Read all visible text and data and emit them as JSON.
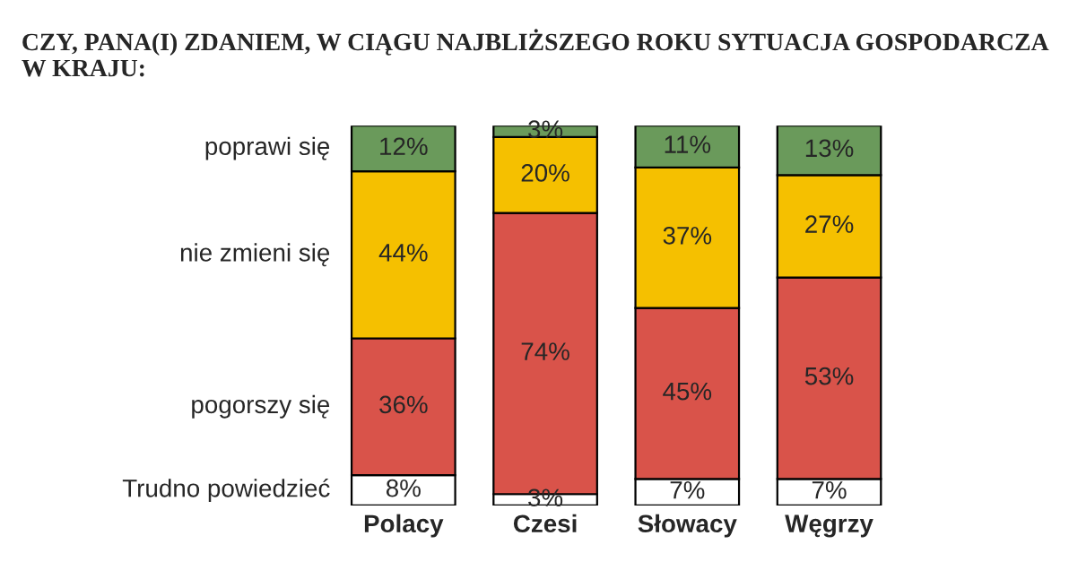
{
  "chart_data": {
    "type": "bar",
    "stacked": true,
    "title": "CZY, PANA(I) ZDANIEM, W CIĄGU NAJBLIŻSZEGO ROKU SYTUACJA GOSPODARCZA W KRAJU:",
    "categories": [
      "Polacy",
      "Czesi",
      "Słowacy",
      "Węgrzy"
    ],
    "ylim": [
      0,
      100
    ],
    "tick_labels": "x",
    "legend": false,
    "series": [
      {
        "name": "Trudno powiedzieć",
        "color": "#ffffff",
        "values": [
          8,
          3,
          7,
          7
        ],
        "value_labels": [
          "8%",
          "3%",
          "7%",
          "7%"
        ]
      },
      {
        "name": "pogorszy się",
        "color": "#d9534a",
        "values": [
          36,
          74,
          45,
          53
        ],
        "value_labels": [
          "36%",
          "74%",
          "45%",
          "53%"
        ]
      },
      {
        "name": "nie zmieni się",
        "color": "#f5c000",
        "values": [
          44,
          20,
          37,
          27
        ],
        "value_labels": [
          "44%",
          "20%",
          "37%",
          "27%"
        ]
      },
      {
        "name": "poprawi się",
        "color": "#6a9a5b",
        "values": [
          12,
          3,
          11,
          13
        ],
        "value_labels": [
          "12%",
          "3%",
          "11%",
          "13%"
        ]
      }
    ]
  }
}
